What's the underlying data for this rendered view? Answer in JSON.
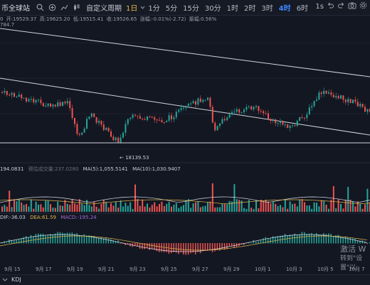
{
  "toolbar": {
    "brand": "币全球站",
    "custom_period": "自定义周期",
    "period_select": "1日",
    "periods": [
      "1分",
      "5分",
      "15分",
      "30分",
      "1时",
      "2时",
      "3时",
      "4时",
      "6时"
    ],
    "active_period": "4时",
    "right_label": "1s",
    "icons": [
      "search-icon",
      "compare-icon",
      "indicator-icon",
      "candle-type-icon",
      "undo-icon",
      "redo-icon",
      "camera-icon",
      "settings-icon"
    ]
  },
  "info_bar": {
    "open_label": "开:19529.37",
    "high_label": "高:19625.20",
    "low_label": "低:19515.41",
    "close_label": "收:19526.65",
    "change_label": "涨幅:-0.01%(-2.72)",
    "amp_label": "振幅:0.56%",
    "lead": "0"
  },
  "price_top": "784.7",
  "low_marker": "← 18139.53",
  "volume_info": {
    "vol": "194.0831",
    "forecast": "预估成交量:237.0280",
    "ma5": "MA(5):1,055.5141",
    "ma10": "MA(10):1,030.9407"
  },
  "macd_info": {
    "dif": "DIF:-36.03",
    "dea": "DEA:61.59",
    "macd": "MACD:-195.24"
  },
  "x_axis": [
    "9月 15",
    "9月 17",
    "9月 19",
    "9月 21",
    "9月 23",
    "9月 25",
    "9月 27",
    "9月 29",
    "10月 1",
    "10月 3",
    "10月 5",
    "10月 7"
  ],
  "bottom": {
    "kdj": "KDJ"
  },
  "watermark": {
    "line1": "激活 W",
    "line2": "转到\"设置\"以"
  },
  "colors": {
    "up": "#26a69a",
    "down": "#ef5350",
    "bg": "#131722",
    "accent": "#3e86ff"
  }
}
